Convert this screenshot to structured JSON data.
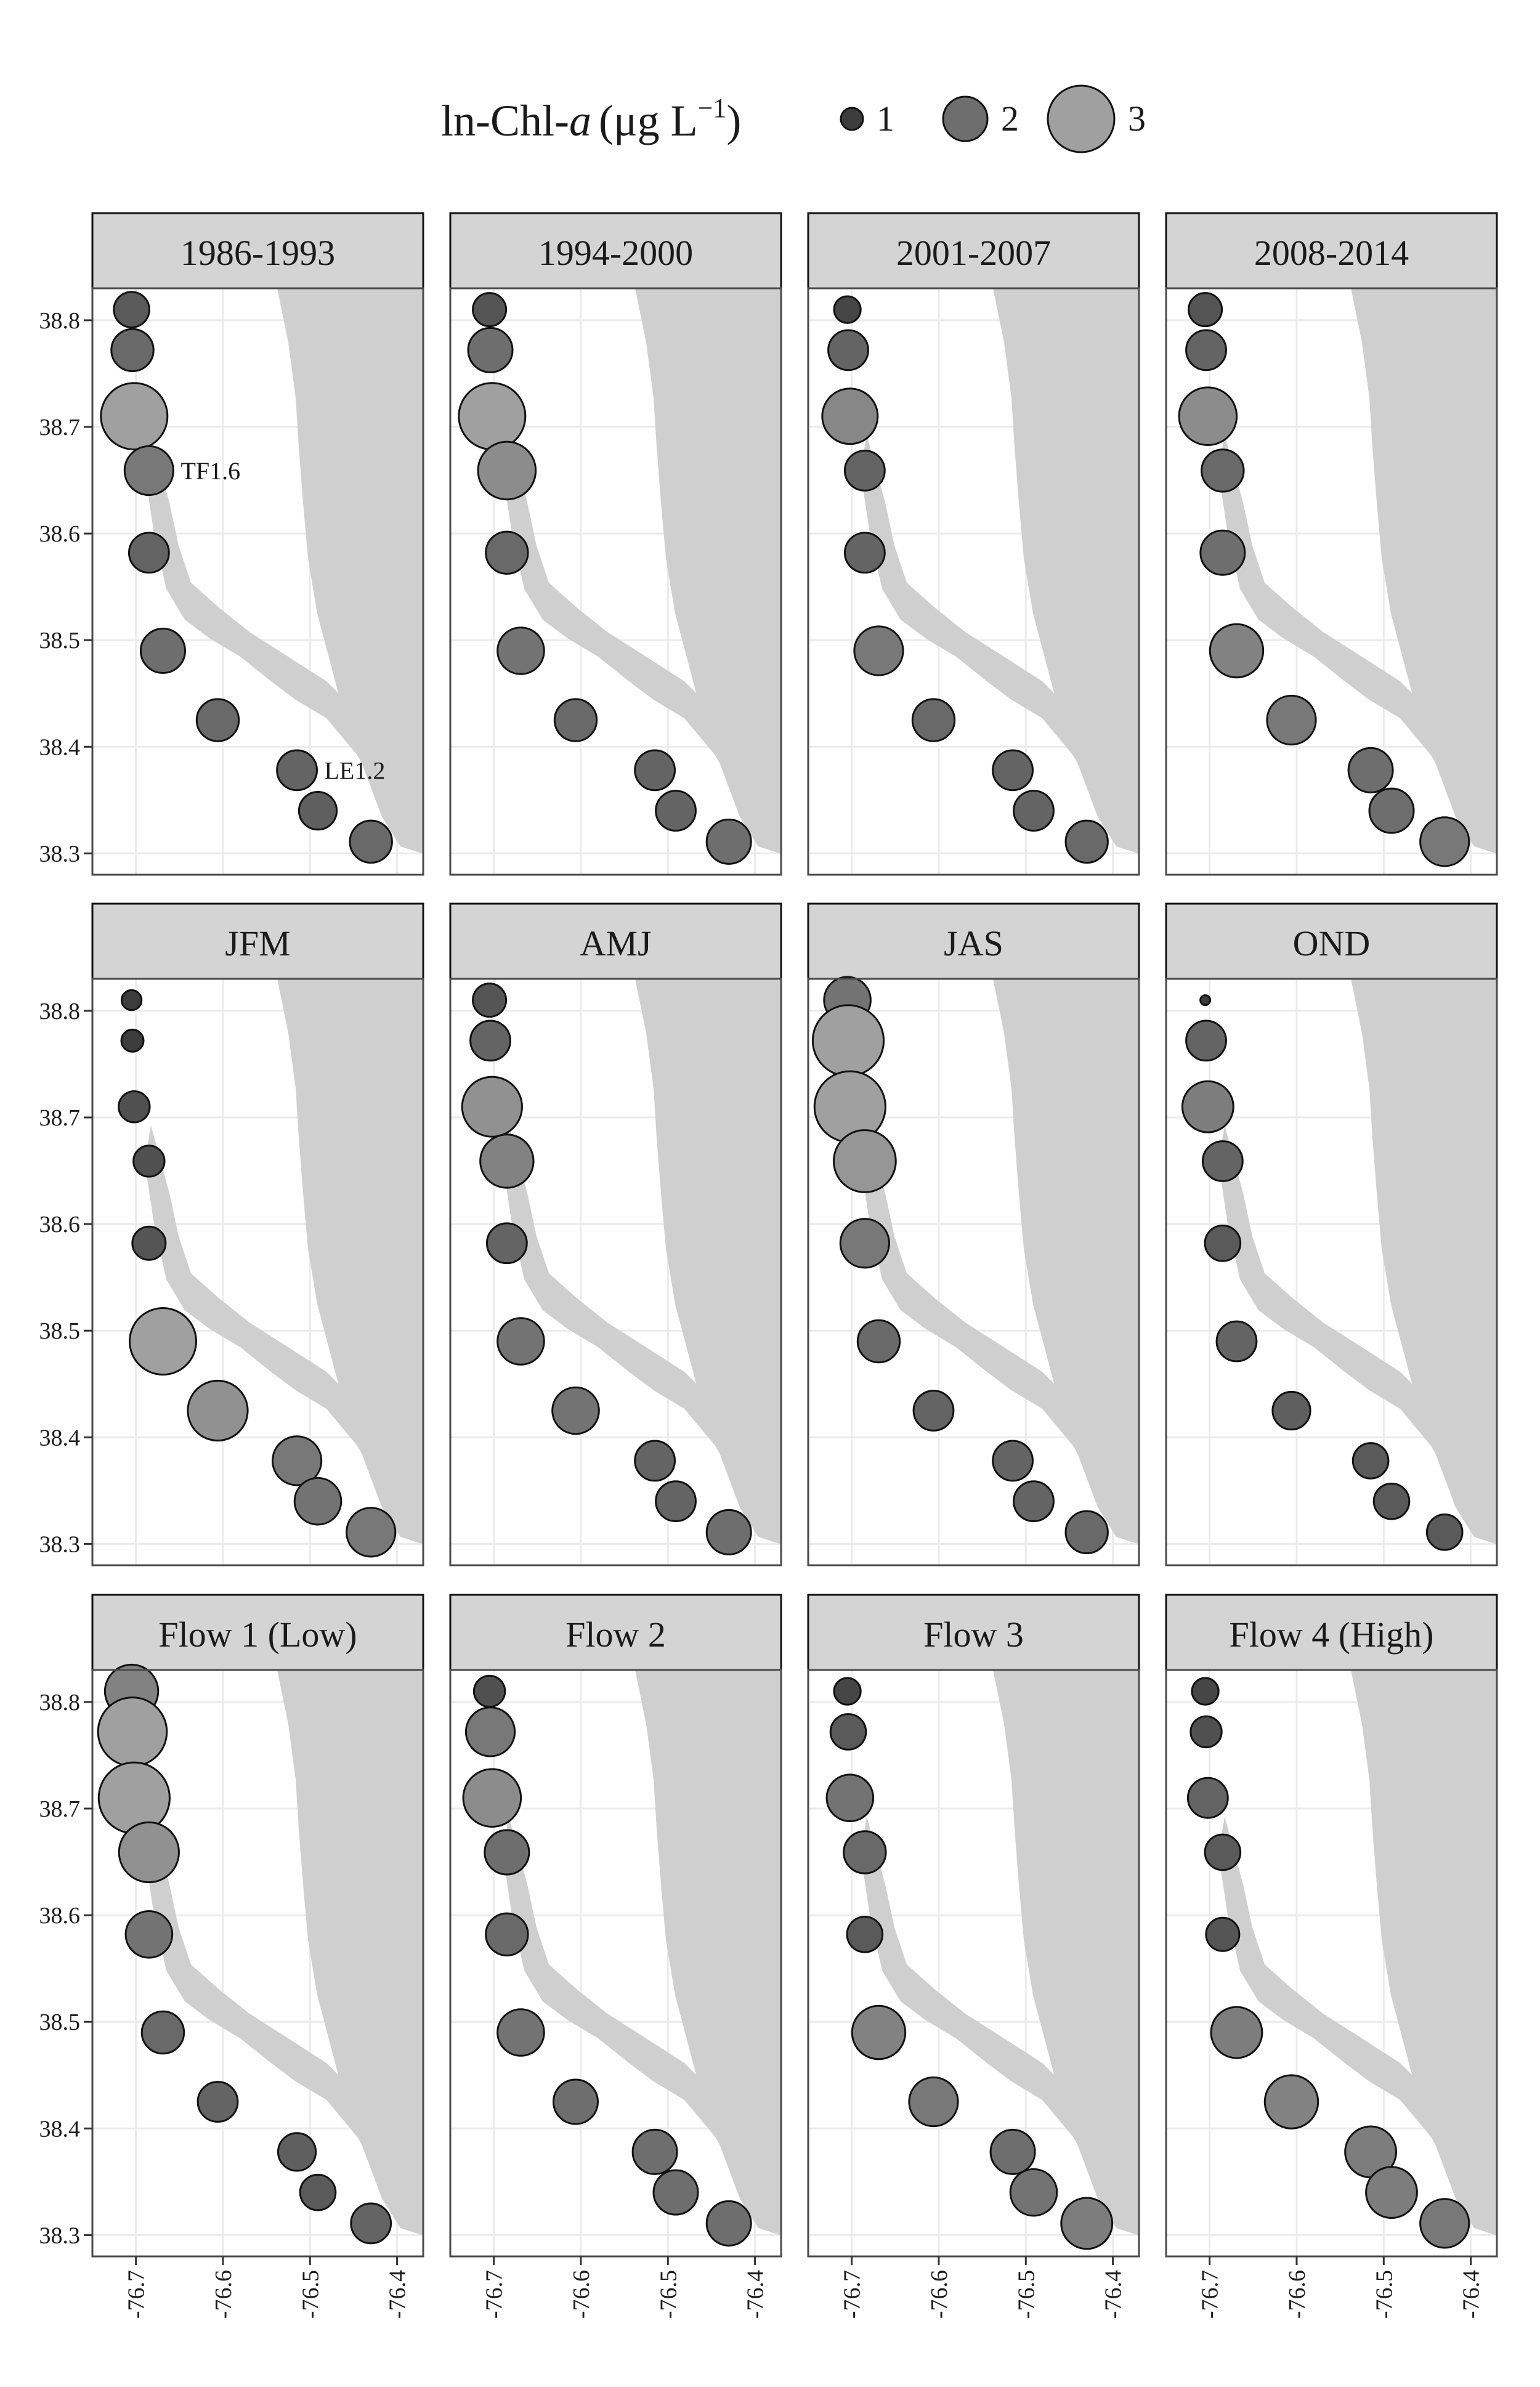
{
  "legend": {
    "title": "ln-Chl-",
    "title_italic": "a",
    "title_unit": "(μg L",
    "title_exp": "−1",
    "title_close": ")",
    "entries": [
      {
        "label": "1",
        "value": 1
      },
      {
        "label": "2",
        "value": 2
      },
      {
        "label": "3",
        "value": 3
      }
    ]
  },
  "colors": {
    "low": "#3c3c3c",
    "mid": "#6f6f6f",
    "high": "#a0a0a0",
    "land": "#cfcfcf",
    "strip": "#d4d4d4",
    "grid": "#ebebeb",
    "border": "#4a4a4a"
  },
  "chart_data": {
    "type": "scatter",
    "encoding": "bubble size and gray shade = ln-Chl-a (μg L−1)",
    "grid": true,
    "xlim": [
      -76.75,
      -76.37
    ],
    "ylim": [
      38.28,
      38.83
    ],
    "x_ticks": [
      -76.7,
      -76.6,
      -76.5,
      -76.4
    ],
    "x_tick_labels": [
      "-76.7",
      "-76.6",
      "-76.5",
      "-76.4"
    ],
    "y_ticks": [
      38.3,
      38.4,
      38.5,
      38.6,
      38.7,
      38.8
    ],
    "y_tick_labels": [
      "38.3",
      "38.4",
      "38.5",
      "38.6",
      "38.7",
      "38.8"
    ],
    "stations": [
      {
        "lon": -76.705,
        "lat": 38.81
      },
      {
        "lon": -76.704,
        "lat": 38.772
      },
      {
        "lon": -76.702,
        "lat": 38.71
      },
      {
        "lon": -76.685,
        "lat": 38.659,
        "label": "TF1.6"
      },
      {
        "lon": -76.685,
        "lat": 38.582
      },
      {
        "lon": -76.669,
        "lat": 38.49
      },
      {
        "lon": -76.606,
        "lat": 38.425
      },
      {
        "lon": -76.515,
        "lat": 38.378,
        "label": "LE1.2"
      },
      {
        "lon": -76.491,
        "lat": 38.34
      },
      {
        "lon": -76.43,
        "lat": 38.311
      }
    ],
    "panels": [
      {
        "title": "1986-1993",
        "values": [
          1.6,
          1.9,
          3.0,
          2.2,
          1.8,
          2.0,
          1.9,
          1.8,
          1.7,
          1.9
        ]
      },
      {
        "title": "1994-2000",
        "values": [
          1.5,
          2.0,
          3.0,
          2.6,
          1.9,
          2.1,
          1.9,
          1.8,
          1.8,
          2.0
        ]
      },
      {
        "title": "2001-2007",
        "values": [
          1.2,
          1.8,
          2.5,
          1.8,
          1.8,
          2.2,
          1.9,
          1.8,
          1.8,
          1.9
        ]
      },
      {
        "title": "2008-2014",
        "values": [
          1.5,
          1.8,
          2.6,
          1.9,
          2.0,
          2.4,
          2.2,
          2.0,
          2.0,
          2.2
        ]
      },
      {
        "title": "JFM",
        "values": [
          0.9,
          1.0,
          1.4,
          1.4,
          1.5,
          3.0,
          2.7,
          2.2,
          2.1,
          2.2
        ]
      },
      {
        "title": "AMJ",
        "values": [
          1.5,
          1.8,
          2.7,
          2.4,
          1.8,
          2.1,
          2.1,
          1.8,
          1.8,
          2.0
        ]
      },
      {
        "title": "JAS",
        "values": [
          2.1,
          3.2,
          3.2,
          2.8,
          2.2,
          1.9,
          1.8,
          1.8,
          1.8,
          1.9
        ]
      },
      {
        "title": "OND",
        "values": [
          0.4,
          1.8,
          2.3,
          1.8,
          1.6,
          1.8,
          1.7,
          1.6,
          1.6,
          1.6
        ]
      },
      {
        "title": "Flow 1 (Low)",
        "values": [
          2.4,
          3.1,
          3.2,
          2.7,
          2.1,
          1.9,
          1.8,
          1.7,
          1.6,
          1.8
        ]
      },
      {
        "title": "Flow 2",
        "values": [
          1.4,
          2.2,
          2.6,
          2.0,
          1.9,
          2.1,
          2.0,
          2.0,
          2.0,
          2.0
        ]
      },
      {
        "title": "Flow 3",
        "values": [
          1.2,
          1.6,
          2.1,
          1.9,
          1.6,
          2.4,
          2.2,
          2.0,
          2.1,
          2.3
        ]
      },
      {
        "title": "Flow 4 (High)",
        "values": [
          1.2,
          1.4,
          1.8,
          1.6,
          1.5,
          2.3,
          2.4,
          2.3,
          2.3,
          2.2
        ]
      }
    ]
  }
}
